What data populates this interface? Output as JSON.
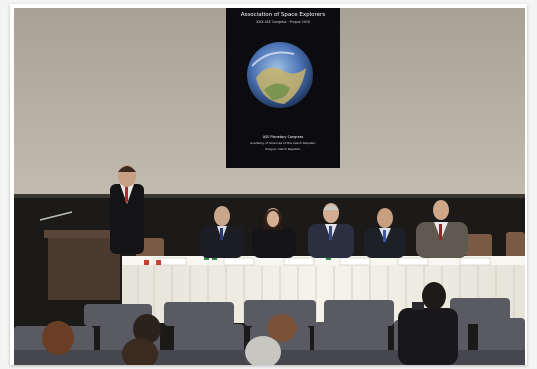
{
  "poster": {
    "title": "Association of Space Explorers",
    "subtitle": "XXIX ASE Congress · Prague 2016",
    "footer_line1": "ASE Planetary Congress",
    "footer_line2": "Academy of Sciences of the Czech Republic",
    "footer_line3": "Prague, Czech Republic"
  },
  "colors": {
    "screen": "#b7b1a6",
    "tablecloth": "#f1efe6",
    "hall": "#1e1c1a"
  },
  "icons": [
    "earth-globe-icon"
  ]
}
